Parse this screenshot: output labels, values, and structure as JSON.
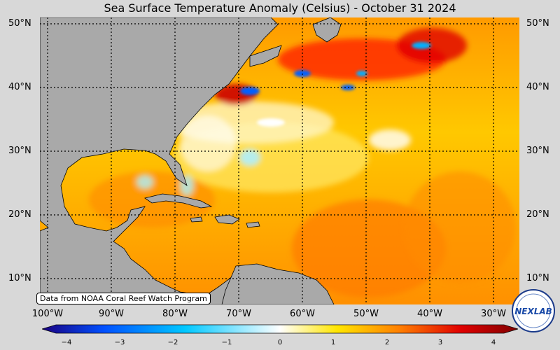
{
  "title": "Sea Surface Temperature Anomaly (Celsius) - October 31 2024",
  "latitudes": [
    "50°N",
    "40°N",
    "30°N",
    "20°N",
    "10°N"
  ],
  "longitudes": [
    "100°W",
    "90°W",
    "80°W",
    "70°W",
    "60°W",
    "50°W",
    "40°W",
    "30°W"
  ],
  "credit": "Data from NOAA Coral Reef Watch Program",
  "colorbar": {
    "ticks": [
      "−4",
      "−3",
      "−2",
      "−1",
      "0",
      "1",
      "2",
      "3",
      "4"
    ],
    "range": [
      -4,
      4
    ],
    "colors": [
      "#1a0080",
      "#0050ff",
      "#00c8ff",
      "#ffffff",
      "#ffe600",
      "#ff8000",
      "#e00000",
      "#800000"
    ]
  },
  "logo": {
    "text": "NEXLAB"
  },
  "colors": {
    "land": "#a9a9a9",
    "ocean_base": "#ffb000",
    "background": "#d8d8d8"
  }
}
